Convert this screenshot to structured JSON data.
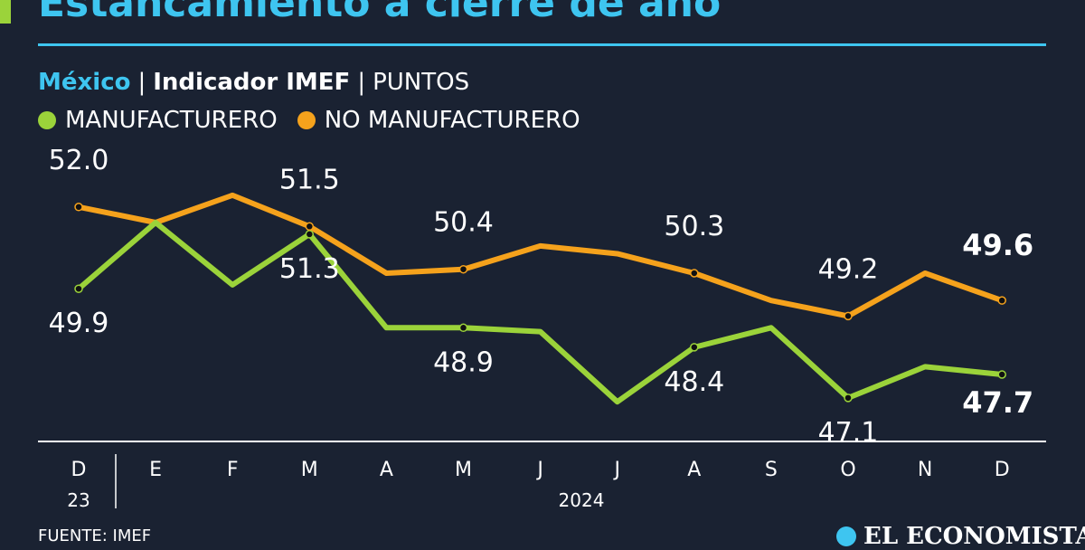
{
  "header": {
    "title": "Estancamiento a cierre de año",
    "country": "México",
    "indicator": "Indicador IMEF",
    "unit": "PUNTOS",
    "source": "FUENTE: IMEF",
    "brand": "EL ECONOMISTA"
  },
  "colors": {
    "background": "#1a2232",
    "accent": "#3ec5f0",
    "manufacturero": "#9bd33a",
    "no_manufacturero": "#f5a21c"
  },
  "chart_data": {
    "type": "line",
    "categories": [
      "D",
      "E",
      "F",
      "M",
      "A",
      "M",
      "J",
      "J",
      "A",
      "S",
      "O",
      "N",
      "D"
    ],
    "year_labels": [
      "23",
      "2024"
    ],
    "series": [
      {
        "name": "MANUFACTURERO",
        "color": "#9bd33a",
        "values": [
          49.9,
          51.6,
          50.0,
          51.3,
          48.9,
          48.9,
          48.8,
          47.0,
          48.4,
          48.9,
          47.1,
          47.9,
          47.7
        ],
        "labels": [
          "49.9",
          null,
          null,
          "51.3",
          null,
          "48.9",
          null,
          null,
          "48.4",
          null,
          "47.1",
          null,
          "47.7"
        ]
      },
      {
        "name": "NO MANUFACTURERO",
        "color": "#f5a21c",
        "values": [
          52.0,
          51.6,
          52.3,
          51.5,
          50.3,
          50.4,
          51.0,
          50.8,
          50.3,
          49.6,
          49.2,
          50.3,
          49.6
        ],
        "labels": [
          "52.0",
          null,
          null,
          "51.5",
          null,
          "50.4",
          null,
          null,
          "50.3",
          null,
          "49.2",
          null,
          "49.6"
        ]
      }
    ],
    "ylim": [
      46.4,
      52.9
    ],
    "grid": false,
    "legend": "top-left"
  }
}
